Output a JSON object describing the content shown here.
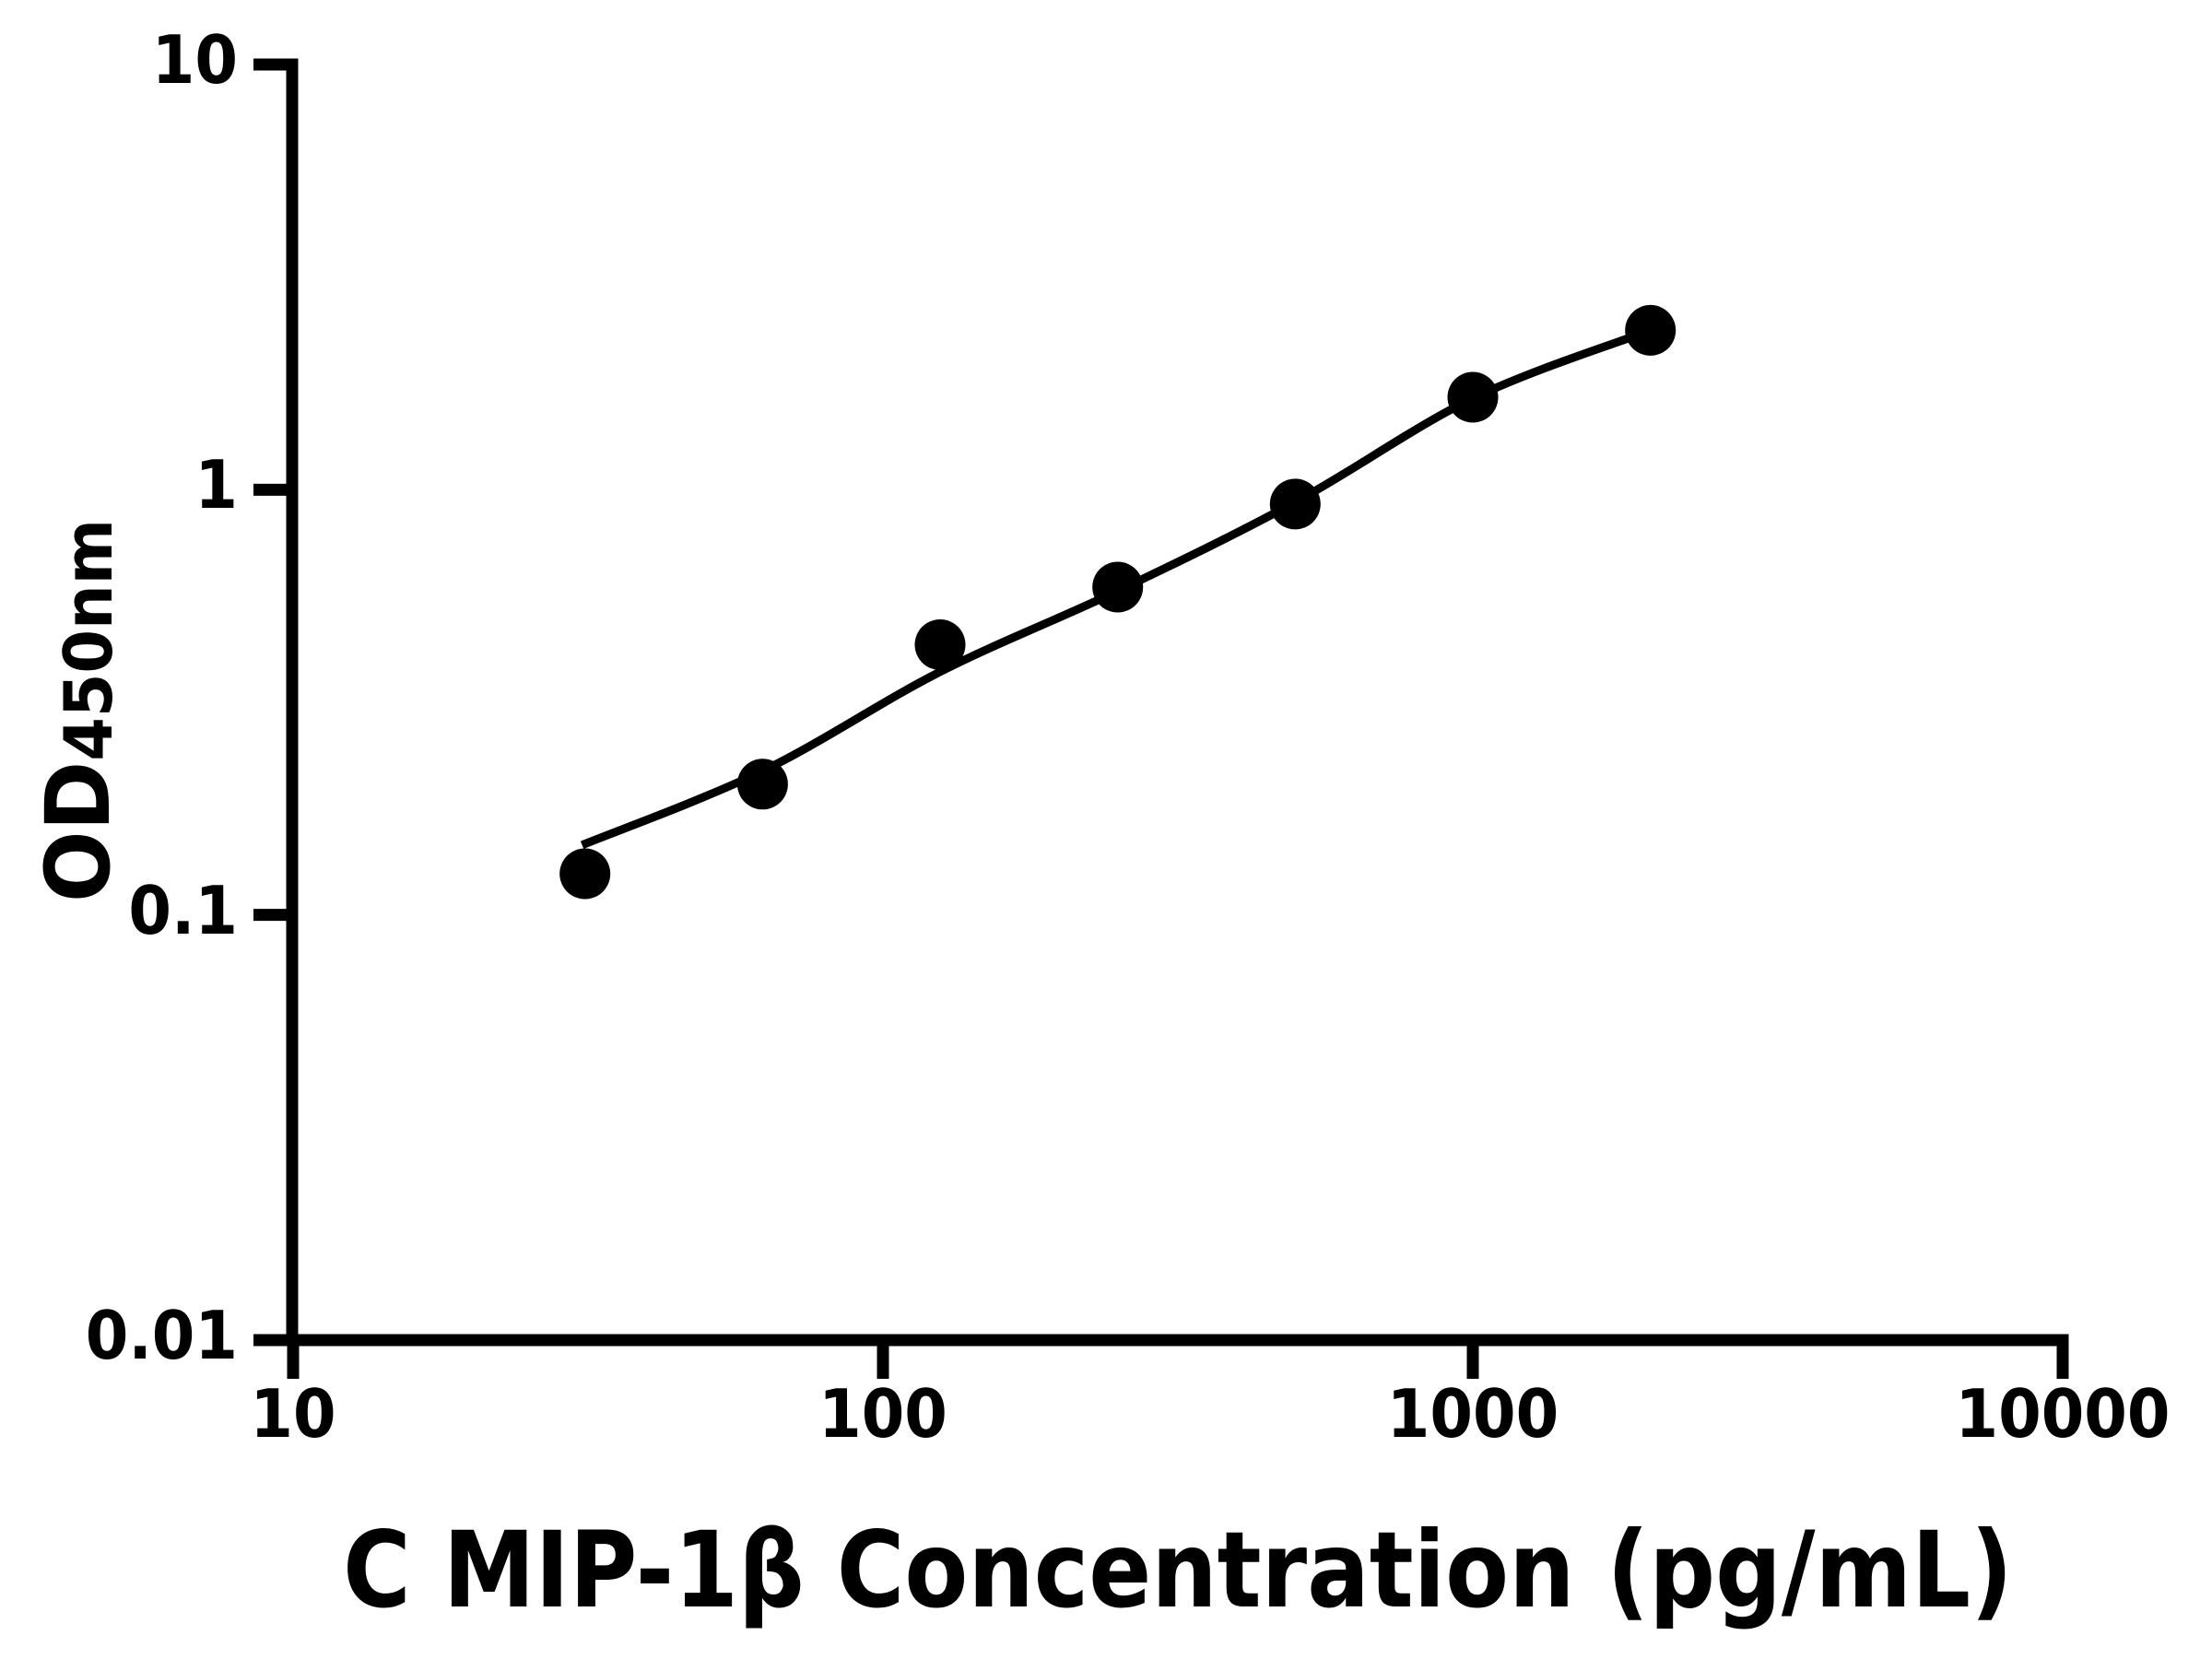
{
  "chart_data": {
    "type": "scatter",
    "title": "",
    "xlabel": "C MIP-1β Concentration (pg/mL)",
    "ylabel": "OD",
    "ylabel_subscript": "450nm",
    "x_scale": "log",
    "y_scale": "log",
    "xlim": [
      10,
      10000
    ],
    "ylim": [
      0.01,
      10
    ],
    "grid": false,
    "legend": "none",
    "axis_color": "#000000",
    "background_color": "#ffffff",
    "x_ticks": [
      10,
      100,
      1000,
      10000
    ],
    "x_tick_labels": [
      "10",
      "100",
      "1000",
      "10000"
    ],
    "y_ticks": [
      10,
      1,
      0.1,
      0.01
    ],
    "y_tick_labels": [
      "10",
      "1",
      "0.1",
      "0.01"
    ],
    "series": [
      {
        "name": "standard-points",
        "type": "scatter",
        "marker": "circle",
        "marker_color": "#000000",
        "points": [
          {
            "x": 31.25,
            "y": 0.125
          },
          {
            "x": 62.5,
            "y": 0.203
          },
          {
            "x": 125,
            "y": 0.432
          },
          {
            "x": 250,
            "y": 0.59
          },
          {
            "x": 500,
            "y": 0.925
          },
          {
            "x": 1000,
            "y": 1.65
          },
          {
            "x": 2000,
            "y": 2.37
          }
        ]
      },
      {
        "name": "fitted-curve",
        "type": "line",
        "color": "#000000",
        "points": [
          {
            "x": 30.9,
            "y": 0.146
          },
          {
            "x": 62.5,
            "y": 0.218
          },
          {
            "x": 125,
            "y": 0.373
          },
          {
            "x": 250,
            "y": 0.578
          },
          {
            "x": 500,
            "y": 0.935
          },
          {
            "x": 1000,
            "y": 1.64
          },
          {
            "x": 2000,
            "y": 2.37
          }
        ]
      }
    ]
  }
}
